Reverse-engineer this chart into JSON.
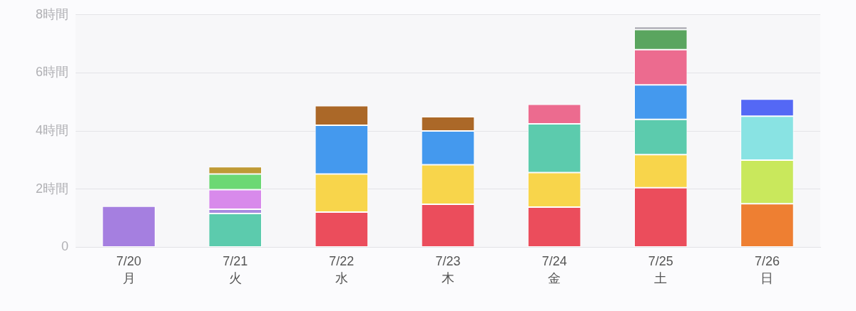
{
  "chart_data": {
    "type": "bar",
    "stacked": true,
    "categories": [
      "7/20\n月",
      "7/21\n火",
      "7/22\n水",
      "7/23\n木",
      "7/24\n金",
      "7/25\n土",
      "7/26\n日"
    ],
    "series": [
      {
        "colors": [
          "#a57fe0",
          "#5ccbad",
          "#eb4d5c",
          "#eb4d5c",
          "#eb4d5c",
          "#eb4d5c",
          "#ee7f32"
        ],
        "values": [
          1.41,
          1.16,
          1.21,
          1.48,
          1.38,
          2.05,
          1.5
        ]
      },
      {
        "colors": [
          null,
          "#a98be0",
          "#f8d54b",
          "#f8d54b",
          "#f8d54b",
          "#f8d54b",
          "#c9e85c"
        ],
        "values": [
          null,
          0.15,
          1.31,
          1.36,
          1.19,
          1.14,
          1.5
        ]
      },
      {
        "colors": [
          null,
          "#d88aeb",
          "#4499ee",
          "#4499ee",
          "#5ccbad",
          "#5ccbad",
          "#89e3e3"
        ],
        "values": [
          null,
          0.67,
          1.68,
          1.16,
          1.68,
          1.21,
          1.51
        ]
      },
      {
        "colors": [
          null,
          "#6cd874",
          "#ab6828",
          "#ab6828",
          "#ec6b8f",
          "#4499ee",
          "#5468f5"
        ],
        "values": [
          null,
          0.54,
          0.67,
          0.49,
          0.67,
          1.19,
          0.59
        ]
      },
      {
        "colors": [
          null,
          "#bf9a35",
          null,
          null,
          null,
          "#ec6b8f",
          null
        ],
        "values": [
          null,
          0.25,
          null,
          null,
          null,
          1.21,
          null
        ]
      },
      {
        "colors": [
          null,
          null,
          null,
          null,
          null,
          "#5aa55f",
          null
        ],
        "values": [
          null,
          null,
          null,
          null,
          null,
          0.69,
          null
        ]
      },
      {
        "colors": [
          null,
          null,
          null,
          null,
          null,
          "#a0a0a8",
          null
        ],
        "values": [
          null,
          null,
          null,
          null,
          null,
          0.1,
          null
        ]
      }
    ],
    "ylim": [
      0,
      8
    ],
    "yticks": [
      0,
      {
        "value": 2,
        "label": "2時間"
      },
      {
        "value": 4,
        "label": "4時間"
      },
      {
        "value": 6,
        "label": "6時間"
      },
      {
        "value": 8,
        "label": "8時間"
      }
    ],
    "grid": "y",
    "legend": false
  }
}
